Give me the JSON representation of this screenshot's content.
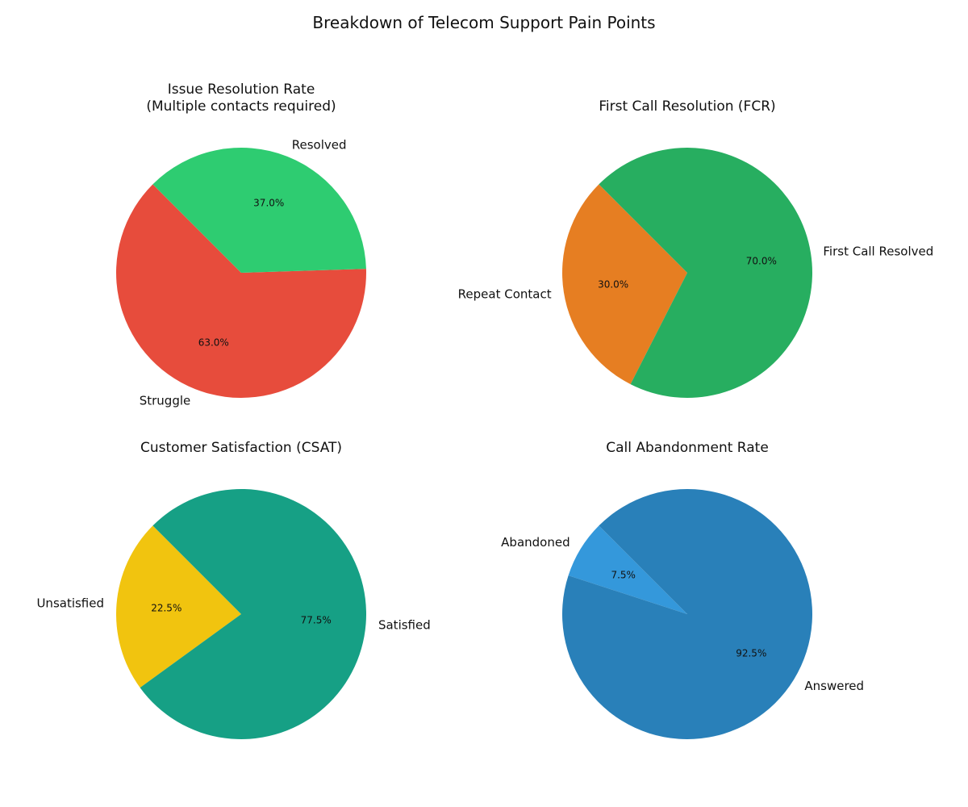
{
  "figure": {
    "title": "Breakdown of Telecom Support Pain Points"
  },
  "chart_data": [
    {
      "type": "pie",
      "title": "Issue Resolution Rate\n(Multiple contacts required)",
      "labels": [
        "Struggle",
        "Resolved"
      ],
      "values": [
        63.0,
        37.0
      ],
      "colors": [
        "#e74c3c",
        "#2ecc71"
      ],
      "autopct": [
        "63.0%",
        "37.0%"
      ],
      "start_angle_deg": 135,
      "direction": "counterclockwise"
    },
    {
      "type": "pie",
      "title": "First Call Resolution (FCR)",
      "labels": [
        "Repeat Contact",
        "First Call Resolved"
      ],
      "values": [
        30.0,
        70.0
      ],
      "colors": [
        "#e67e22",
        "#27ae60"
      ],
      "autopct": [
        "30.0%",
        "70.0%"
      ],
      "start_angle_deg": 135,
      "direction": "counterclockwise"
    },
    {
      "type": "pie",
      "title": "Customer Satisfaction (CSAT)",
      "labels": [
        "Unsatisfied",
        "Satisfied"
      ],
      "values": [
        22.5,
        77.5
      ],
      "colors": [
        "#f1c40f",
        "#16a085"
      ],
      "autopct": [
        "22.5%",
        "77.5%"
      ],
      "start_angle_deg": 135,
      "direction": "counterclockwise"
    },
    {
      "type": "pie",
      "title": "Call Abandonment Rate",
      "labels": [
        "Abandoned",
        "Answered"
      ],
      "values": [
        7.5,
        92.5
      ],
      "colors": [
        "#3498db",
        "#2980b9"
      ],
      "autopct": [
        "7.5%",
        "92.5%"
      ],
      "start_angle_deg": 135,
      "direction": "counterclockwise"
    }
  ]
}
